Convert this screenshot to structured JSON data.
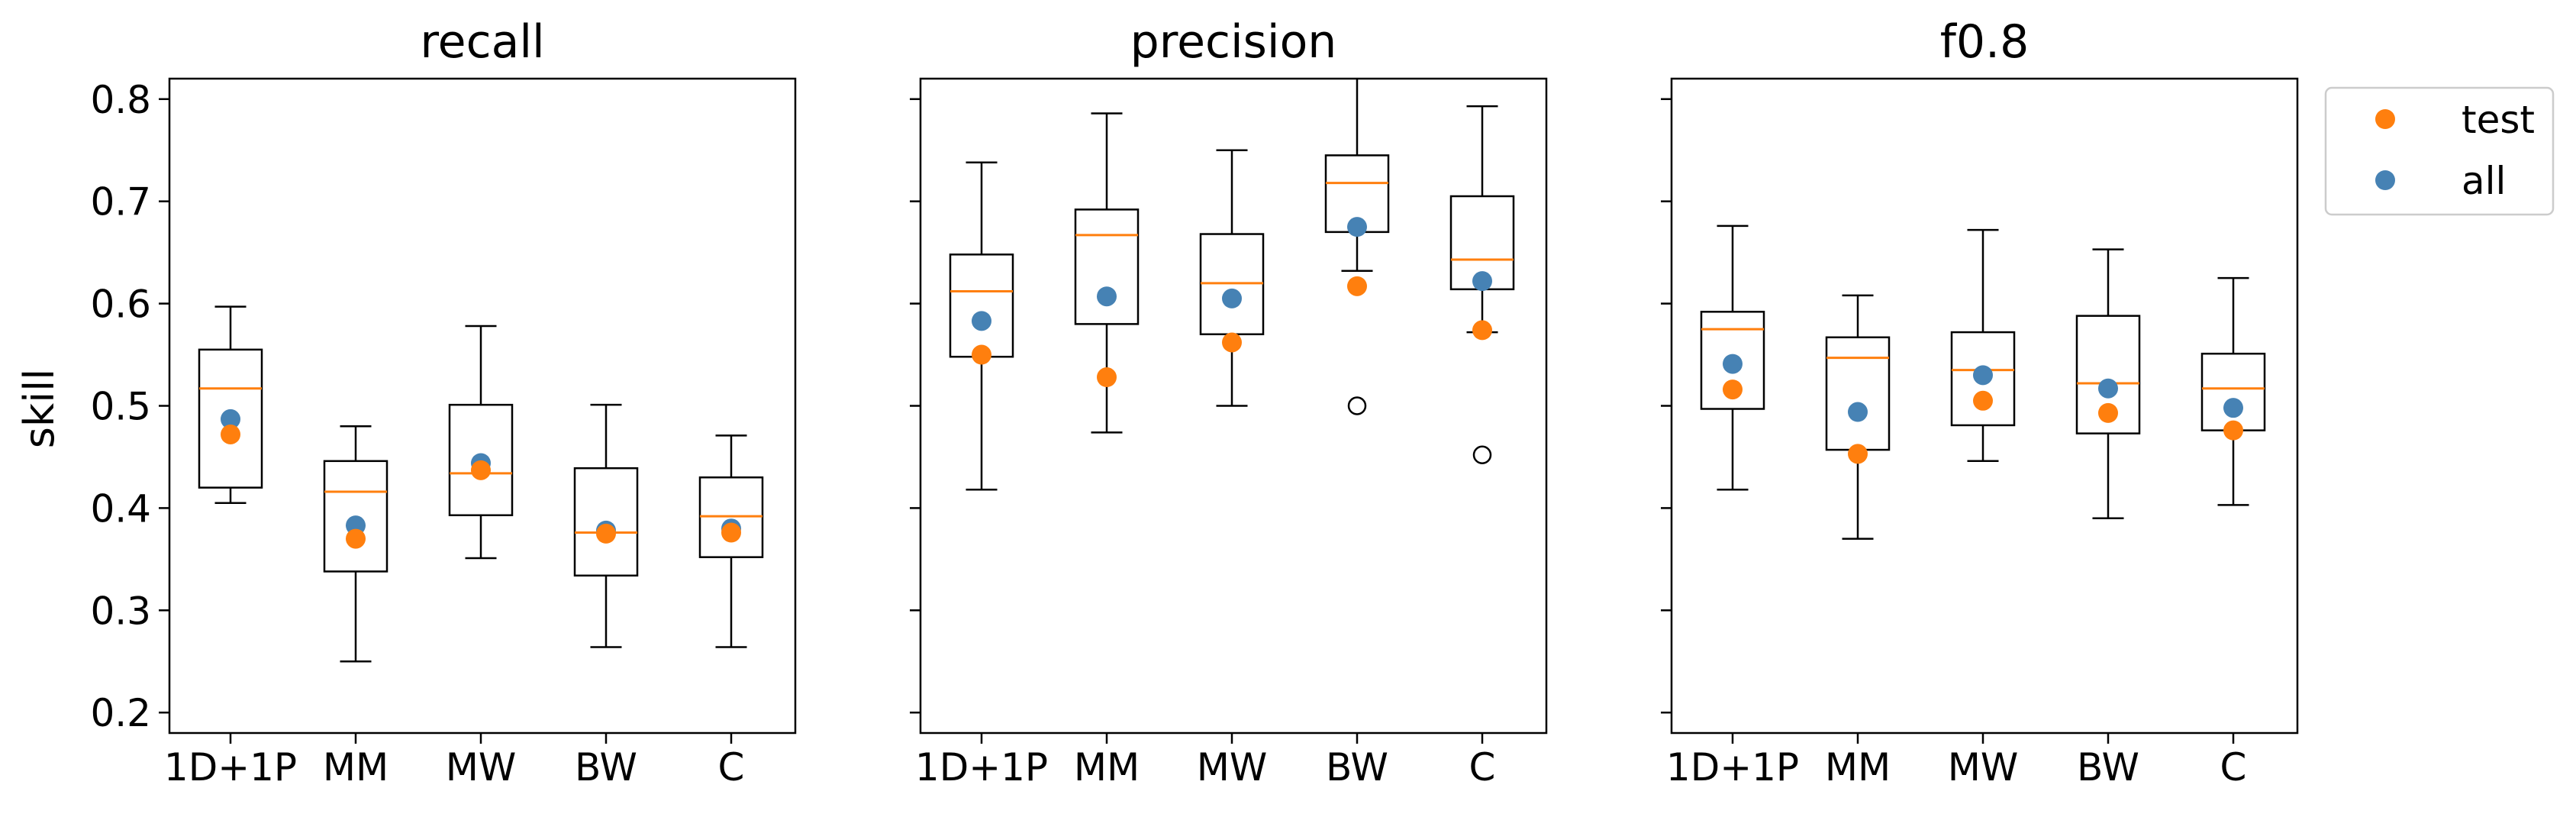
{
  "chart_data": {
    "type": "box",
    "ylabel": "skill",
    "ylim": [
      0.18,
      0.82
    ],
    "yticks": [
      "0.2",
      "0.3",
      "0.4",
      "0.5",
      "0.6",
      "0.7",
      "0.8"
    ],
    "categories": [
      "1D+1P",
      "MM",
      "MW",
      "BW",
      "C"
    ],
    "legend": {
      "position": "outside-right",
      "entries": [
        {
          "label": "test",
          "color": "#ff7f0e"
        },
        {
          "label": "all",
          "color": "#4682b4"
        }
      ]
    },
    "colors": {
      "median": "#ff7f0e",
      "test": "#ff7f0e",
      "all": "#4682b4",
      "box": "#000000"
    },
    "panels": [
      {
        "title": "recall",
        "boxes": [
          {
            "category": "1D+1P",
            "whislo": 0.405,
            "q1": 0.42,
            "med": 0.517,
            "q3": 0.555,
            "whishi": 0.597,
            "fliers": []
          },
          {
            "category": "MM",
            "whislo": 0.25,
            "q1": 0.338,
            "med": 0.416,
            "q3": 0.446,
            "whishi": 0.48,
            "fliers": []
          },
          {
            "category": "MW",
            "whislo": 0.351,
            "q1": 0.393,
            "med": 0.434,
            "q3": 0.501,
            "whishi": 0.578,
            "fliers": []
          },
          {
            "category": "BW",
            "whislo": 0.264,
            "q1": 0.334,
            "med": 0.376,
            "q3": 0.439,
            "whishi": 0.501,
            "fliers": []
          },
          {
            "category": "C",
            "whislo": 0.264,
            "q1": 0.352,
            "med": 0.392,
            "q3": 0.43,
            "whishi": 0.471,
            "fliers": []
          }
        ],
        "test": [
          0.472,
          0.37,
          0.437,
          0.375,
          0.376
        ],
        "all": [
          0.487,
          0.383,
          0.444,
          0.378,
          0.38
        ]
      },
      {
        "title": "precision",
        "boxes": [
          {
            "category": "1D+1P",
            "whislo": 0.418,
            "q1": 0.548,
            "med": 0.612,
            "q3": 0.648,
            "whishi": 0.738,
            "fliers": []
          },
          {
            "category": "MM",
            "whislo": 0.474,
            "q1": 0.58,
            "med": 0.667,
            "q3": 0.692,
            "whishi": 0.786,
            "fliers": []
          },
          {
            "category": "MW",
            "whislo": 0.5,
            "q1": 0.57,
            "med": 0.62,
            "q3": 0.668,
            "whishi": 0.75,
            "fliers": []
          },
          {
            "category": "BW",
            "whislo": 0.632,
            "q1": 0.67,
            "med": 0.718,
            "q3": 0.745,
            "whishi": 0.825,
            "fliers": [
              0.5
            ]
          },
          {
            "category": "C",
            "whislo": 0.572,
            "q1": 0.614,
            "med": 0.643,
            "q3": 0.705,
            "whishi": 0.793,
            "fliers": [
              0.452
            ]
          }
        ],
        "test": [
          0.55,
          0.528,
          0.562,
          0.617,
          0.574
        ],
        "all": [
          0.583,
          0.607,
          0.605,
          0.675,
          0.622
        ]
      },
      {
        "title": "f0.8",
        "boxes": [
          {
            "category": "1D+1P",
            "whislo": 0.418,
            "q1": 0.497,
            "med": 0.575,
            "q3": 0.592,
            "whishi": 0.676,
            "fliers": []
          },
          {
            "category": "MM",
            "whislo": 0.37,
            "q1": 0.457,
            "med": 0.547,
            "q3": 0.567,
            "whishi": 0.608,
            "fliers": []
          },
          {
            "category": "MW",
            "whislo": 0.446,
            "q1": 0.481,
            "med": 0.535,
            "q3": 0.572,
            "whishi": 0.672,
            "fliers": []
          },
          {
            "category": "BW",
            "whislo": 0.39,
            "q1": 0.473,
            "med": 0.522,
            "q3": 0.588,
            "whishi": 0.653,
            "fliers": []
          },
          {
            "category": "C",
            "whislo": 0.403,
            "q1": 0.476,
            "med": 0.517,
            "q3": 0.551,
            "whishi": 0.625,
            "fliers": []
          }
        ],
        "test": [
          0.516,
          0.453,
          0.505,
          0.493,
          0.476
        ],
        "all": [
          0.541,
          0.494,
          0.53,
          0.517,
          0.498
        ]
      }
    ]
  }
}
